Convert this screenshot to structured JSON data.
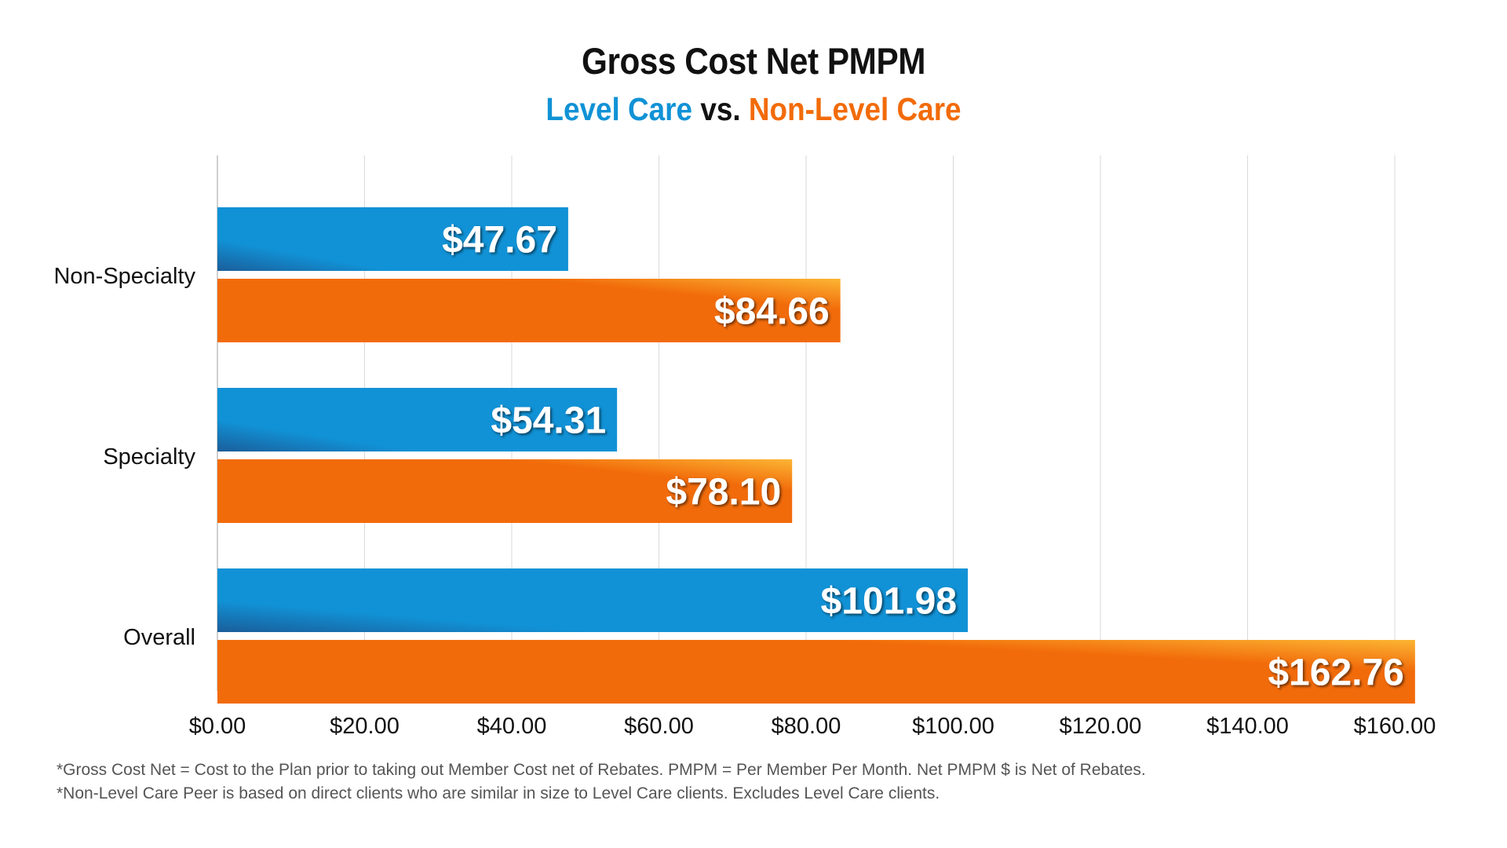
{
  "header": {
    "title": "Gross Cost Net PMPM",
    "subtitle_level": "Level Care",
    "subtitle_vs": "vs.",
    "subtitle_nonlevel": "Non-Level Care"
  },
  "colors": {
    "level": "#1192d6",
    "level_dark": "#1a5e9a",
    "nonlevel": "#f26b0a",
    "nonlevel_light": "#fbb534",
    "grid": "#d9d9d9"
  },
  "chart_data": {
    "type": "bar",
    "orientation": "horizontal",
    "categories": [
      "Non-Specialty",
      "Specialty",
      "Overall"
    ],
    "series": [
      {
        "name": "Level Care",
        "values": [
          47.67,
          54.31,
          101.98
        ],
        "labels": [
          "$47.67",
          "$54.31",
          "$101.98"
        ]
      },
      {
        "name": "Non-Level Care",
        "values": [
          84.66,
          78.1,
          162.76
        ],
        "labels": [
          "$84.66",
          "$78.10",
          "$162.76"
        ]
      }
    ],
    "xlim": [
      0,
      160
    ],
    "xticks": [
      0,
      20,
      40,
      60,
      80,
      100,
      120,
      140,
      160
    ],
    "xtick_labels": [
      "$0.00",
      "$20.00",
      "$40.00",
      "$60.00",
      "$80.00",
      "$100.00",
      "$120.00",
      "$140.00",
      "$160.00"
    ],
    "grid": true,
    "legend": "subtitle"
  },
  "footnotes": [
    "*Gross Cost Net = Cost to the Plan prior to taking out Member Cost net of Rebates. PMPM = Per Member Per Month. Net PMPM $ is Net of Rebates.",
    "*Non-Level Care Peer is based on direct clients who are similar in size to Level Care clients. Excludes Level Care clients."
  ]
}
